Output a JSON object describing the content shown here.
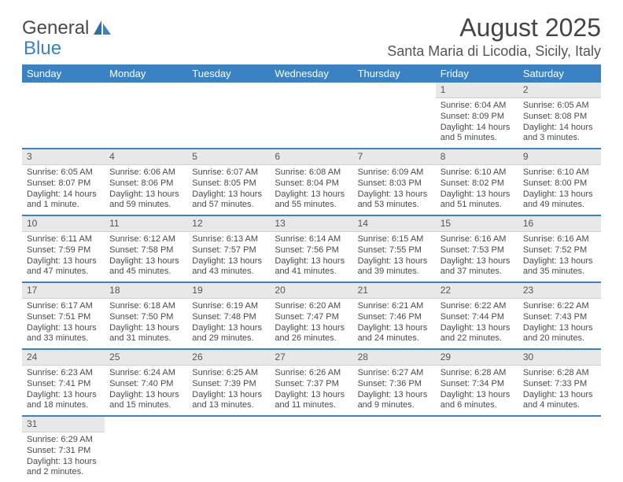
{
  "brand": {
    "part1": "General",
    "part2": "Blue"
  },
  "title": "August 2025",
  "location": "Santa Maria di Licodia, Sicily, Italy",
  "colors": {
    "header_bg": "#3b82c4",
    "header_text": "#ffffff",
    "daynum_bg": "#e8e8e8",
    "row_divider": "#3b82c4",
    "body_text": "#4a4a4a",
    "page_bg": "#ffffff"
  },
  "typography": {
    "title_fontsize": 32,
    "location_fontsize": 18,
    "weekday_fontsize": 13,
    "cell_fontsize": 11,
    "font_family": "Arial"
  },
  "weekdays": [
    "Sunday",
    "Monday",
    "Tuesday",
    "Wednesday",
    "Thursday",
    "Friday",
    "Saturday"
  ],
  "grid": [
    [
      null,
      null,
      null,
      null,
      null,
      {
        "n": "1",
        "sunrise": "Sunrise: 6:04 AM",
        "sunset": "Sunset: 8:09 PM",
        "daylight": "Daylight: 14 hours and 5 minutes."
      },
      {
        "n": "2",
        "sunrise": "Sunrise: 6:05 AM",
        "sunset": "Sunset: 8:08 PM",
        "daylight": "Daylight: 14 hours and 3 minutes."
      }
    ],
    [
      {
        "n": "3",
        "sunrise": "Sunrise: 6:05 AM",
        "sunset": "Sunset: 8:07 PM",
        "daylight": "Daylight: 14 hours and 1 minute."
      },
      {
        "n": "4",
        "sunrise": "Sunrise: 6:06 AM",
        "sunset": "Sunset: 8:06 PM",
        "daylight": "Daylight: 13 hours and 59 minutes."
      },
      {
        "n": "5",
        "sunrise": "Sunrise: 6:07 AM",
        "sunset": "Sunset: 8:05 PM",
        "daylight": "Daylight: 13 hours and 57 minutes."
      },
      {
        "n": "6",
        "sunrise": "Sunrise: 6:08 AM",
        "sunset": "Sunset: 8:04 PM",
        "daylight": "Daylight: 13 hours and 55 minutes."
      },
      {
        "n": "7",
        "sunrise": "Sunrise: 6:09 AM",
        "sunset": "Sunset: 8:03 PM",
        "daylight": "Daylight: 13 hours and 53 minutes."
      },
      {
        "n": "8",
        "sunrise": "Sunrise: 6:10 AM",
        "sunset": "Sunset: 8:02 PM",
        "daylight": "Daylight: 13 hours and 51 minutes."
      },
      {
        "n": "9",
        "sunrise": "Sunrise: 6:10 AM",
        "sunset": "Sunset: 8:00 PM",
        "daylight": "Daylight: 13 hours and 49 minutes."
      }
    ],
    [
      {
        "n": "10",
        "sunrise": "Sunrise: 6:11 AM",
        "sunset": "Sunset: 7:59 PM",
        "daylight": "Daylight: 13 hours and 47 minutes."
      },
      {
        "n": "11",
        "sunrise": "Sunrise: 6:12 AM",
        "sunset": "Sunset: 7:58 PM",
        "daylight": "Daylight: 13 hours and 45 minutes."
      },
      {
        "n": "12",
        "sunrise": "Sunrise: 6:13 AM",
        "sunset": "Sunset: 7:57 PM",
        "daylight": "Daylight: 13 hours and 43 minutes."
      },
      {
        "n": "13",
        "sunrise": "Sunrise: 6:14 AM",
        "sunset": "Sunset: 7:56 PM",
        "daylight": "Daylight: 13 hours and 41 minutes."
      },
      {
        "n": "14",
        "sunrise": "Sunrise: 6:15 AM",
        "sunset": "Sunset: 7:55 PM",
        "daylight": "Daylight: 13 hours and 39 minutes."
      },
      {
        "n": "15",
        "sunrise": "Sunrise: 6:16 AM",
        "sunset": "Sunset: 7:53 PM",
        "daylight": "Daylight: 13 hours and 37 minutes."
      },
      {
        "n": "16",
        "sunrise": "Sunrise: 6:16 AM",
        "sunset": "Sunset: 7:52 PM",
        "daylight": "Daylight: 13 hours and 35 minutes."
      }
    ],
    [
      {
        "n": "17",
        "sunrise": "Sunrise: 6:17 AM",
        "sunset": "Sunset: 7:51 PM",
        "daylight": "Daylight: 13 hours and 33 minutes."
      },
      {
        "n": "18",
        "sunrise": "Sunrise: 6:18 AM",
        "sunset": "Sunset: 7:50 PM",
        "daylight": "Daylight: 13 hours and 31 minutes."
      },
      {
        "n": "19",
        "sunrise": "Sunrise: 6:19 AM",
        "sunset": "Sunset: 7:48 PM",
        "daylight": "Daylight: 13 hours and 29 minutes."
      },
      {
        "n": "20",
        "sunrise": "Sunrise: 6:20 AM",
        "sunset": "Sunset: 7:47 PM",
        "daylight": "Daylight: 13 hours and 26 minutes."
      },
      {
        "n": "21",
        "sunrise": "Sunrise: 6:21 AM",
        "sunset": "Sunset: 7:46 PM",
        "daylight": "Daylight: 13 hours and 24 minutes."
      },
      {
        "n": "22",
        "sunrise": "Sunrise: 6:22 AM",
        "sunset": "Sunset: 7:44 PM",
        "daylight": "Daylight: 13 hours and 22 minutes."
      },
      {
        "n": "23",
        "sunrise": "Sunrise: 6:22 AM",
        "sunset": "Sunset: 7:43 PM",
        "daylight": "Daylight: 13 hours and 20 minutes."
      }
    ],
    [
      {
        "n": "24",
        "sunrise": "Sunrise: 6:23 AM",
        "sunset": "Sunset: 7:41 PM",
        "daylight": "Daylight: 13 hours and 18 minutes."
      },
      {
        "n": "25",
        "sunrise": "Sunrise: 6:24 AM",
        "sunset": "Sunset: 7:40 PM",
        "daylight": "Daylight: 13 hours and 15 minutes."
      },
      {
        "n": "26",
        "sunrise": "Sunrise: 6:25 AM",
        "sunset": "Sunset: 7:39 PM",
        "daylight": "Daylight: 13 hours and 13 minutes."
      },
      {
        "n": "27",
        "sunrise": "Sunrise: 6:26 AM",
        "sunset": "Sunset: 7:37 PM",
        "daylight": "Daylight: 13 hours and 11 minutes."
      },
      {
        "n": "28",
        "sunrise": "Sunrise: 6:27 AM",
        "sunset": "Sunset: 7:36 PM",
        "daylight": "Daylight: 13 hours and 9 minutes."
      },
      {
        "n": "29",
        "sunrise": "Sunrise: 6:28 AM",
        "sunset": "Sunset: 7:34 PM",
        "daylight": "Daylight: 13 hours and 6 minutes."
      },
      {
        "n": "30",
        "sunrise": "Sunrise: 6:28 AM",
        "sunset": "Sunset: 7:33 PM",
        "daylight": "Daylight: 13 hours and 4 minutes."
      }
    ],
    [
      {
        "n": "31",
        "sunrise": "Sunrise: 6:29 AM",
        "sunset": "Sunset: 7:31 PM",
        "daylight": "Daylight: 13 hours and 2 minutes."
      },
      null,
      null,
      null,
      null,
      null,
      null
    ]
  ]
}
